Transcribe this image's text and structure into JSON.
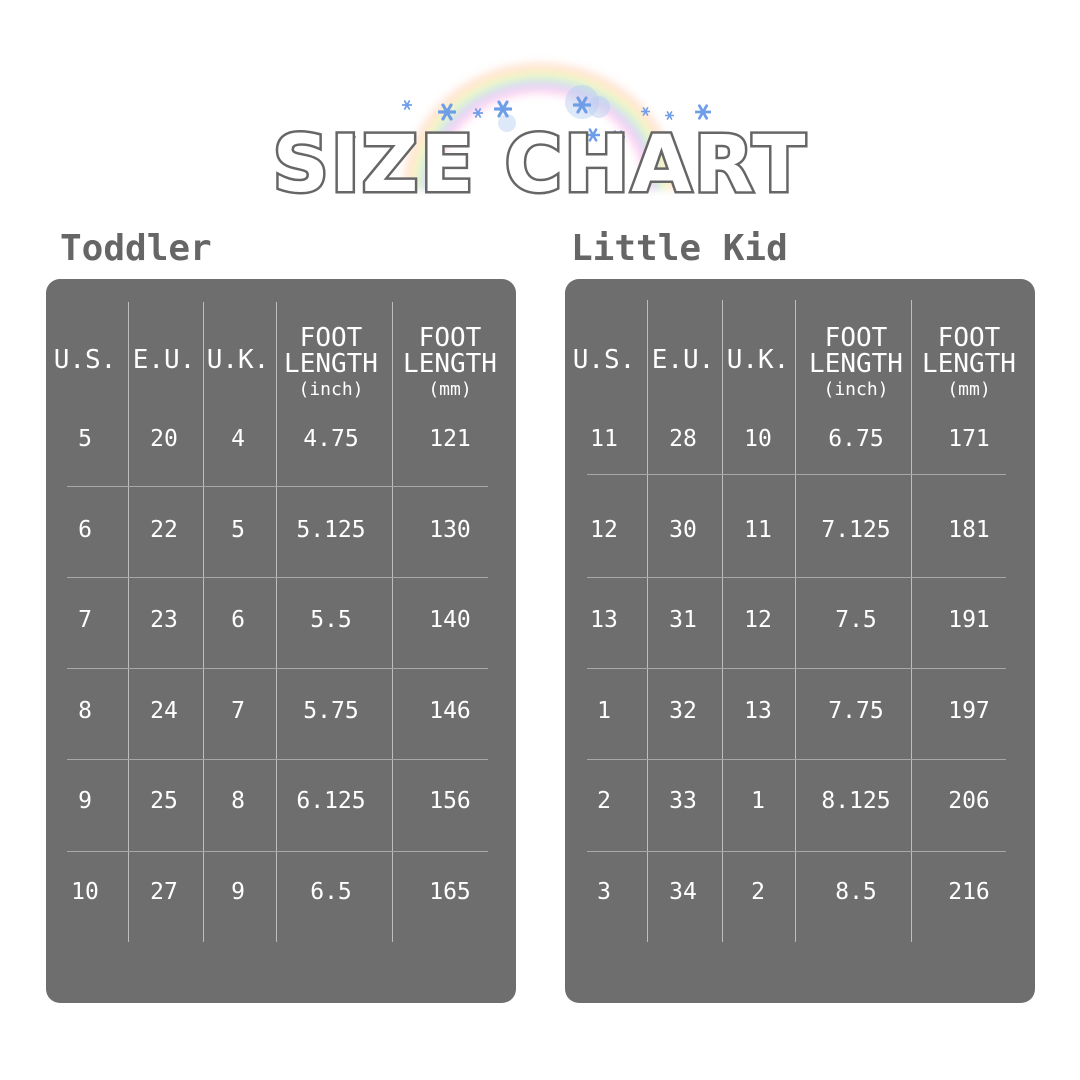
{
  "title": "SIZE CHART",
  "colors": {
    "panel": "#6e6e6e",
    "title_stroke": "#666666",
    "section_title": "#666666",
    "text": "#ffffff"
  },
  "headers": [
    {
      "line1": "U.S."
    },
    {
      "line1": "E.U."
    },
    {
      "line1": "U.K."
    },
    {
      "line1": "FOOT",
      "line2": "LENGTH",
      "unit": "(inch)"
    },
    {
      "line1": "FOOT",
      "line2": "LENGTH",
      "unit": "(mm)"
    }
  ],
  "tables": [
    {
      "name": "Toddler",
      "rows": [
        [
          "5",
          "20",
          "4",
          "4.75",
          "121"
        ],
        [
          "6",
          "22",
          "5",
          "5.125",
          "130"
        ],
        [
          "7",
          "23",
          "6",
          "5.5",
          "140"
        ],
        [
          "8",
          "24",
          "7",
          "5.75",
          "146"
        ],
        [
          "9",
          "25",
          "8",
          "6.125",
          "156"
        ],
        [
          "10",
          "27",
          "9",
          "6.5",
          "165"
        ]
      ]
    },
    {
      "name": "Little Kid",
      "rows": [
        [
          "11",
          "28",
          "10",
          "6.75",
          "171"
        ],
        [
          "12",
          "30",
          "11",
          "7.125",
          "181"
        ],
        [
          "13",
          "31",
          "12",
          "7.5",
          "191"
        ],
        [
          "1",
          "32",
          "13",
          "7.75",
          "197"
        ],
        [
          "2",
          "33",
          "1",
          "8.125",
          "206"
        ],
        [
          "3",
          "34",
          "2",
          "8.5",
          "216"
        ]
      ]
    }
  ]
}
